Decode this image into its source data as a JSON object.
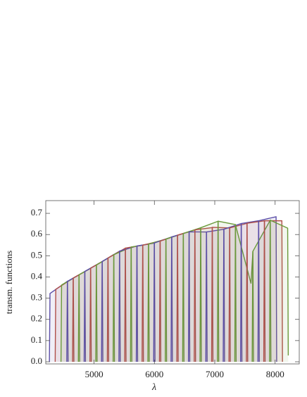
{
  "chart_data": {
    "type": "line",
    "xlabel": "λ",
    "ylabel": "transm. functions",
    "xlim": [
      4200,
      8400
    ],
    "ylim": [
      -0.01,
      0.76
    ],
    "xticks": [
      5000,
      6000,
      7000,
      8000
    ],
    "yticks": [
      {
        "value": 0,
        "label": "0.0"
      },
      0.1,
      0.2,
      0.3,
      0.4,
      0.5,
      0.6,
      0.7
    ],
    "fill": true,
    "series": [
      {
        "color": "#5b4ea8",
        "x": [
          4260,
          4270,
          4560,
          4570
        ],
        "values": [
          0,
          0.322,
          0.38,
          0
        ]
      },
      {
        "color": "#b0504a",
        "x": [
          4356,
          4366,
          4656,
          4666
        ],
        "values": [
          0,
          0.342,
          0.395,
          0
        ]
      },
      {
        "color": "#6a9a3a",
        "x": [
          4452,
          4462,
          4752,
          4762
        ],
        "values": [
          0,
          0.362,
          0.41,
          0
        ]
      },
      {
        "color": "#5b4ea8",
        "x": [
          4548,
          4558,
          4848,
          4858
        ],
        "values": [
          0,
          0.379,
          0.426,
          0
        ]
      },
      {
        "color": "#b0504a",
        "x": [
          4644,
          4654,
          4944,
          4954
        ],
        "values": [
          0,
          0.395,
          0.441,
          0
        ]
      },
      {
        "color": "#6a9a3a",
        "x": [
          4740,
          4750,
          5040,
          5050
        ],
        "values": [
          0,
          0.41,
          0.457,
          0
        ]
      },
      {
        "color": "#5b4ea8",
        "x": [
          4836,
          4846,
          5136,
          5146
        ],
        "values": [
          0,
          0.426,
          0.473,
          0
        ]
      },
      {
        "color": "#b0504a",
        "x": [
          4932,
          4942,
          5232,
          5242
        ],
        "values": [
          0,
          0.441,
          0.489,
          0
        ]
      },
      {
        "color": "#6a9a3a",
        "x": [
          5028,
          5038,
          5328,
          5338
        ],
        "values": [
          0,
          0.456,
          0.506,
          0
        ]
      },
      {
        "color": "#5b4ea8",
        "x": [
          5124,
          5134,
          5424,
          5434
        ],
        "values": [
          0,
          0.473,
          0.522,
          0
        ]
      },
      {
        "color": "#b0504a",
        "x": [
          5220,
          5230,
          5520,
          5530
        ],
        "values": [
          0,
          0.489,
          0.536,
          0
        ]
      },
      {
        "color": "#6a9a3a",
        "x": [
          5316,
          5326,
          5616,
          5626
        ],
        "values": [
          0,
          0.505,
          0.541,
          0
        ]
      },
      {
        "color": "#5b4ea8",
        "x": [
          5412,
          5422,
          5712,
          5722
        ],
        "values": [
          0,
          0.522,
          0.546,
          0
        ]
      },
      {
        "color": "#b0504a",
        "x": [
          5508,
          5518,
          5808,
          5818
        ],
        "values": [
          0,
          0.536,
          0.55,
          0
        ]
      },
      {
        "color": "#6a9a3a",
        "x": [
          5604,
          5614,
          5904,
          5914
        ],
        "values": [
          0,
          0.541,
          0.555,
          0
        ]
      },
      {
        "color": "#5b4ea8",
        "x": [
          5700,
          5710,
          6000,
          6010
        ],
        "values": [
          0,
          0.546,
          0.56,
          0
        ]
      },
      {
        "color": "#b0504a",
        "x": [
          5796,
          5806,
          6096,
          6106
        ],
        "values": [
          0,
          0.55,
          0.57,
          0
        ]
      },
      {
        "color": "#6a9a3a",
        "x": [
          5892,
          5902,
          6192,
          6202
        ],
        "values": [
          0,
          0.555,
          0.579,
          0
        ]
      },
      {
        "color": "#5b4ea8",
        "x": [
          5988,
          5998,
          6288,
          6298
        ],
        "values": [
          0,
          0.56,
          0.589,
          0
        ]
      },
      {
        "color": "#b0504a",
        "x": [
          6084,
          6094,
          6384,
          6394
        ],
        "values": [
          0,
          0.569,
          0.597,
          0
        ]
      },
      {
        "color": "#6a9a3a",
        "x": [
          6180,
          6190,
          6480,
          6490
        ],
        "values": [
          0,
          0.579,
          0.605,
          0
        ]
      },
      {
        "color": "#5b4ea8",
        "x": [
          6276,
          6286,
          6576,
          6586
        ],
        "values": [
          0,
          0.589,
          0.613,
          0
        ]
      },
      {
        "color": "#b0504a",
        "x": [
          6372,
          6382,
          6672,
          6682
        ],
        "values": [
          0,
          0.597,
          0.622,
          0
        ]
      },
      {
        "color": "#6a9a3a",
        "x": [
          6468,
          6478,
          6768,
          6778
        ],
        "values": [
          0,
          0.605,
          0.632,
          0
        ]
      },
      {
        "color": "#5b4ea8",
        "x": [
          6564,
          6574,
          6864,
          6874
        ],
        "values": [
          0,
          0.613,
          0.612,
          0
        ]
      },
      {
        "color": "#b0504a",
        "x": [
          6660,
          6670,
          6960,
          6970
        ],
        "values": [
          0,
          0.622,
          0.633,
          0
        ]
      },
      {
        "color": "#6a9a3a",
        "x": [
          6756,
          6766,
          7056,
          7066
        ],
        "values": [
          0,
          0.632,
          0.663,
          0
        ]
      },
      {
        "color": "#5b4ea8",
        "x": [
          6852,
          6862,
          7152,
          7162
        ],
        "values": [
          0,
          0.612,
          0.625,
          0
        ]
      },
      {
        "color": "#b0504a",
        "x": [
          6948,
          6958,
          7248,
          7258
        ],
        "values": [
          0,
          0.634,
          0.631,
          0
        ]
      },
      {
        "color": "#6a9a3a",
        "x": [
          7044,
          7054,
          7344,
          7354
        ],
        "values": [
          0,
          0.663,
          0.647,
          0
        ]
      },
      {
        "color": "#5b4ea8",
        "x": [
          7140,
          7150,
          7440,
          7450
        ],
        "values": [
          0,
          0.625,
          0.652,
          0
        ]
      },
      {
        "color": "#b0504a",
        "x": [
          7236,
          7246,
          7536,
          7546
        ],
        "values": [
          0,
          0.631,
          0.653,
          0
        ]
      },
      {
        "color": "#6a9a3a",
        "x": [
          7332,
          7342,
          7600,
          7632,
          7642
        ],
        "values": [
          0,
          0.647,
          0.37,
          0.52,
          0
        ]
      },
      {
        "color": "#5b4ea8",
        "x": [
          7428,
          7438,
          7728,
          7738
        ],
        "values": [
          0,
          0.652,
          0.665,
          0
        ]
      },
      {
        "color": "#b0504a",
        "x": [
          7524,
          7534,
          7824,
          7834
        ],
        "values": [
          0,
          0.653,
          0.665,
          0
        ]
      },
      {
        "color": "#6a9a3a",
        "x": [
          7620,
          7630,
          7920,
          7930
        ],
        "values": [
          0,
          0.52,
          0.668,
          0
        ]
      },
      {
        "color": "#5b4ea8",
        "x": [
          7716,
          7726,
          8016,
          8026
        ],
        "values": [
          0,
          0.665,
          0.684,
          0
        ]
      },
      {
        "color": "#b0504a",
        "x": [
          7812,
          7822,
          8112,
          8122
        ],
        "values": [
          0,
          0.665,
          0.665,
          0
        ]
      },
      {
        "color": "#6a9a3a",
        "x": [
          7908,
          7918,
          8208,
          8218
        ],
        "values": [
          0,
          0.668,
          0.63,
          0.03
        ]
      }
    ]
  }
}
